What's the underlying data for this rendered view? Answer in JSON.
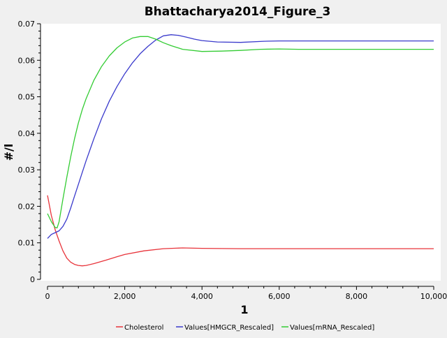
{
  "chart_data": {
    "type": "line",
    "title": "Bhattacharya2014_Figure_3",
    "xlabel": "1",
    "ylabel": "#/l",
    "xlim": [
      0,
      10000
    ],
    "ylim": [
      0,
      0.07
    ],
    "grid": false,
    "legend_position": "bottom",
    "x_ticks": [
      {
        "value": 0,
        "label": "0"
      },
      {
        "value": 2000,
        "label": "2,000"
      },
      {
        "value": 4000,
        "label": "4,000"
      },
      {
        "value": 6000,
        "label": "6,000"
      },
      {
        "value": 8000,
        "label": "8,000"
      },
      {
        "value": 10000,
        "label": "10,000"
      }
    ],
    "y_ticks": [
      {
        "value": 0,
        "label": "0"
      },
      {
        "value": 0.01,
        "label": "0.01"
      },
      {
        "value": 0.02,
        "label": "0.02"
      },
      {
        "value": 0.03,
        "label": "0.03"
      },
      {
        "value": 0.04,
        "label": "0.04"
      },
      {
        "value": 0.05,
        "label": "0.05"
      },
      {
        "value": 0.06,
        "label": "0.06"
      },
      {
        "value": 0.07,
        "label": "0.07"
      }
    ],
    "series": [
      {
        "name": "Cholesterol",
        "color": "#e8333a",
        "x": [
          0,
          100,
          200,
          300,
          400,
          500,
          600,
          700,
          800,
          900,
          1000,
          1200,
          1500,
          1800,
          2000,
          2500,
          3000,
          3500,
          4000,
          5000,
          6000,
          7000,
          8000,
          9000,
          10000
        ],
        "y": [
          0.023,
          0.0175,
          0.0135,
          0.0105,
          0.0078,
          0.0058,
          0.0047,
          0.0041,
          0.0038,
          0.0037,
          0.0038,
          0.0043,
          0.0052,
          0.0062,
          0.0068,
          0.0078,
          0.0084,
          0.0086,
          0.0085,
          0.0084,
          0.0084,
          0.0084,
          0.0084,
          0.0084,
          0.0084
        ]
      },
      {
        "name": "Values[HMGCR_Rescaled]",
        "color": "#3a3acc",
        "x": [
          0,
          100,
          200,
          300,
          400,
          500,
          600,
          700,
          800,
          900,
          1000,
          1200,
          1400,
          1600,
          1800,
          2000,
          2200,
          2400,
          2600,
          2800,
          3000,
          3200,
          3400,
          3600,
          3800,
          4000,
          4400,
          5000,
          5600,
          6000,
          7000,
          8000,
          9000,
          10000
        ],
        "y": [
          0.0112,
          0.0123,
          0.0128,
          0.0133,
          0.0145,
          0.0165,
          0.0195,
          0.0228,
          0.026,
          0.0293,
          0.0325,
          0.0385,
          0.044,
          0.0488,
          0.0528,
          0.0563,
          0.0593,
          0.0618,
          0.0638,
          0.0655,
          0.0667,
          0.067,
          0.0668,
          0.0663,
          0.0658,
          0.0654,
          0.065,
          0.0649,
          0.0652,
          0.0653,
          0.0653,
          0.0653,
          0.0653,
          0.0653
        ]
      },
      {
        "name": "Values[mRNA_Rescaled]",
        "color": "#33cc33",
        "x": [
          0,
          100,
          200,
          250,
          300,
          400,
          500,
          600,
          700,
          800,
          900,
          1000,
          1200,
          1400,
          1600,
          1800,
          2000,
          2200,
          2400,
          2600,
          2800,
          3000,
          3200,
          3500,
          4000,
          4500,
          5000,
          5500,
          6000,
          6500,
          7000,
          8000,
          9000,
          10000
        ],
        "y": [
          0.018,
          0.0158,
          0.0142,
          0.0141,
          0.0158,
          0.022,
          0.028,
          0.0335,
          0.0385,
          0.0428,
          0.0465,
          0.0495,
          0.0545,
          0.0583,
          0.0612,
          0.0634,
          0.065,
          0.0661,
          0.0665,
          0.0665,
          0.0658,
          0.0648,
          0.064,
          0.063,
          0.0624,
          0.0625,
          0.0627,
          0.063,
          0.0631,
          0.063,
          0.063,
          0.063,
          0.063,
          0.063
        ]
      }
    ]
  }
}
